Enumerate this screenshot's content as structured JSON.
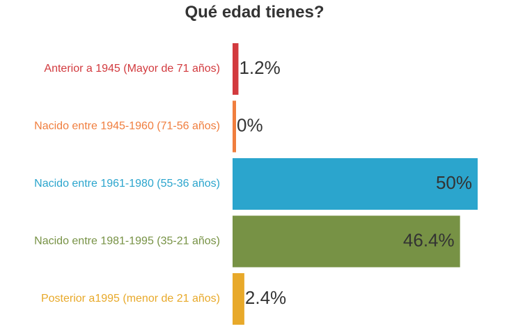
{
  "chart_data": {
    "type": "bar",
    "orientation": "horizontal",
    "title": "Qué edad tienes?",
    "categories": [
      "Anterior a 1945 (Mayor de 71 años)",
      "Nacido entre 1945-1960 (71-56 años)",
      "Nacido entre 1961-1980 (55-36 años)",
      "Nacido entre 1981-1995 (35-21 años)",
      "Posterior a1995 (menor de 21 años)"
    ],
    "values": [
      1.2,
      0,
      50,
      46.4,
      2.4
    ],
    "value_labels": [
      "1.2%",
      "0%",
      "50%",
      "46.4%",
      "2.4%"
    ],
    "colors": [
      "#d23a3e",
      "#f07e3e",
      "#2ba5cd",
      "#779245",
      "#e8a92a"
    ],
    "xlim": [
      0,
      50
    ],
    "grid": false,
    "legend": "none"
  }
}
